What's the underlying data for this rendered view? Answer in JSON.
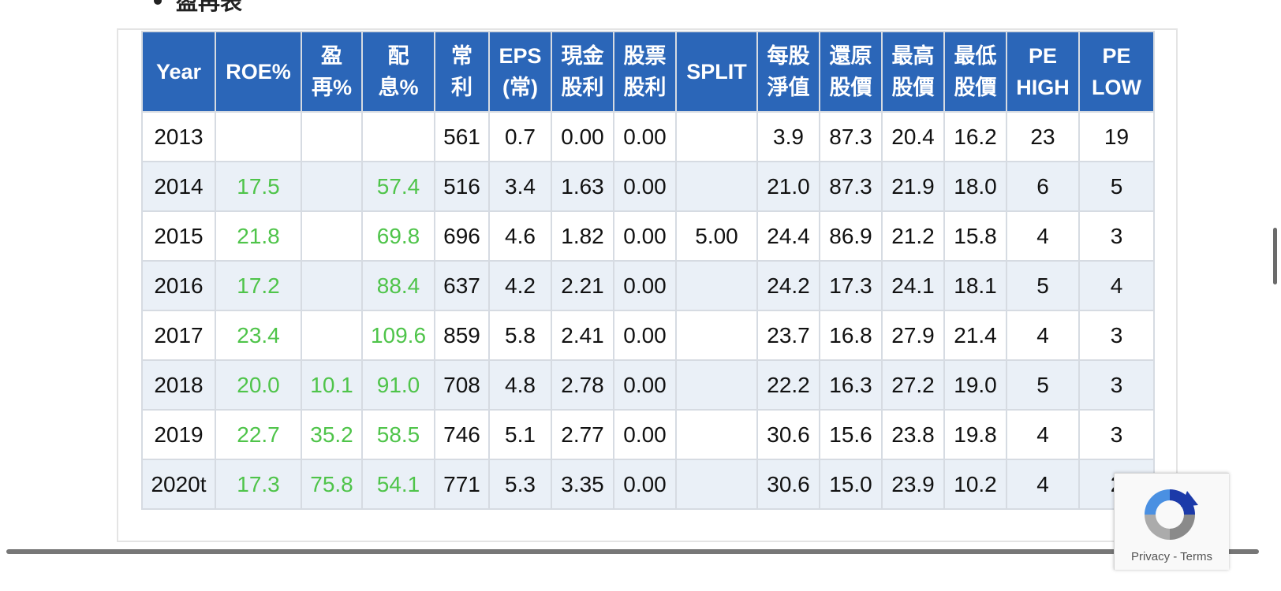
{
  "section": {
    "heading": "盈再表"
  },
  "table": {
    "columns": [
      "Year",
      "ROE%",
      "盈\n再%",
      "配\n息%",
      "常\n利",
      "EPS\n(常)",
      "現金\n股利",
      "股票\n股利",
      "SPLIT",
      "每股\n淨值",
      "還原\n股價",
      "最高\n股價",
      "最低\n股價",
      "PE\nHIGH",
      "PE\nLOW"
    ],
    "rows": [
      [
        "2013",
        "",
        "",
        "",
        "561",
        "0.7",
        "0.00",
        "0.00",
        "",
        "3.9",
        "87.3",
        "20.4",
        "16.2",
        "23",
        "19"
      ],
      [
        "2014",
        "17.5",
        "",
        "57.4",
        "516",
        "3.4",
        "1.63",
        "0.00",
        "",
        "21.0",
        "87.3",
        "21.9",
        "18.0",
        "6",
        "5"
      ],
      [
        "2015",
        "21.8",
        "",
        "69.8",
        "696",
        "4.6",
        "1.82",
        "0.00",
        "5.00",
        "24.4",
        "86.9",
        "21.2",
        "15.8",
        "4",
        "3"
      ],
      [
        "2016",
        "17.2",
        "",
        "88.4",
        "637",
        "4.2",
        "2.21",
        "0.00",
        "",
        "24.2",
        "17.3",
        "24.1",
        "18.1",
        "5",
        "4"
      ],
      [
        "2017",
        "23.4",
        "",
        "109.6",
        "859",
        "5.8",
        "2.41",
        "0.00",
        "",
        "23.7",
        "16.8",
        "27.9",
        "21.4",
        "4",
        "3"
      ],
      [
        "2018",
        "20.0",
        "10.1",
        "91.0",
        "708",
        "4.8",
        "2.78",
        "0.00",
        "",
        "22.2",
        "16.3",
        "27.2",
        "19.0",
        "5",
        "3"
      ],
      [
        "2019",
        "22.7",
        "35.2",
        "58.5",
        "746",
        "5.1",
        "2.77",
        "0.00",
        "",
        "30.6",
        "15.6",
        "23.8",
        "19.8",
        "4",
        "3"
      ],
      [
        "2020t",
        "17.3",
        "75.8",
        "54.1",
        "771",
        "5.3",
        "3.35",
        "0.00",
        "",
        "30.6",
        "15.0",
        "23.9",
        "10.2",
        "4",
        "2"
      ]
    ],
    "green_columns": [
      1,
      2,
      3
    ]
  },
  "recaptcha": {
    "links": "Privacy - Terms",
    "icon": "recaptcha-icon"
  },
  "colors": {
    "header_bg": "#2b66b8",
    "alt_row_bg": "#eaf0f7",
    "green_text": "#4fc44a"
  }
}
